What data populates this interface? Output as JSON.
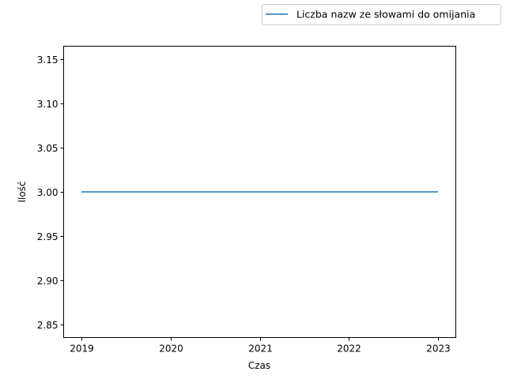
{
  "chart_data": {
    "type": "line",
    "xlabel": "Czas",
    "ylabel": "Ilość",
    "x": [
      2019,
      2020,
      2021,
      2022,
      2023
    ],
    "x_ticks": [
      "2019",
      "2020",
      "2021",
      "2022",
      "2023"
    ],
    "xlim": [
      2018.8,
      2023.2
    ],
    "ylim": [
      2.835,
      3.165
    ],
    "y_ticks": [
      "2.85",
      "2.90",
      "2.95",
      "3.00",
      "3.05",
      "3.10",
      "3.15"
    ],
    "y_tick_values": [
      2.85,
      2.9,
      2.95,
      3.0,
      3.05,
      3.1,
      3.15
    ],
    "series": [
      {
        "name": "Liczba nazw ze słowami do omijania",
        "values": [
          3,
          3,
          3,
          3,
          3
        ],
        "color": "#1f77b4"
      }
    ],
    "grid": false,
    "legend_position": "top-right (outside plot)"
  }
}
